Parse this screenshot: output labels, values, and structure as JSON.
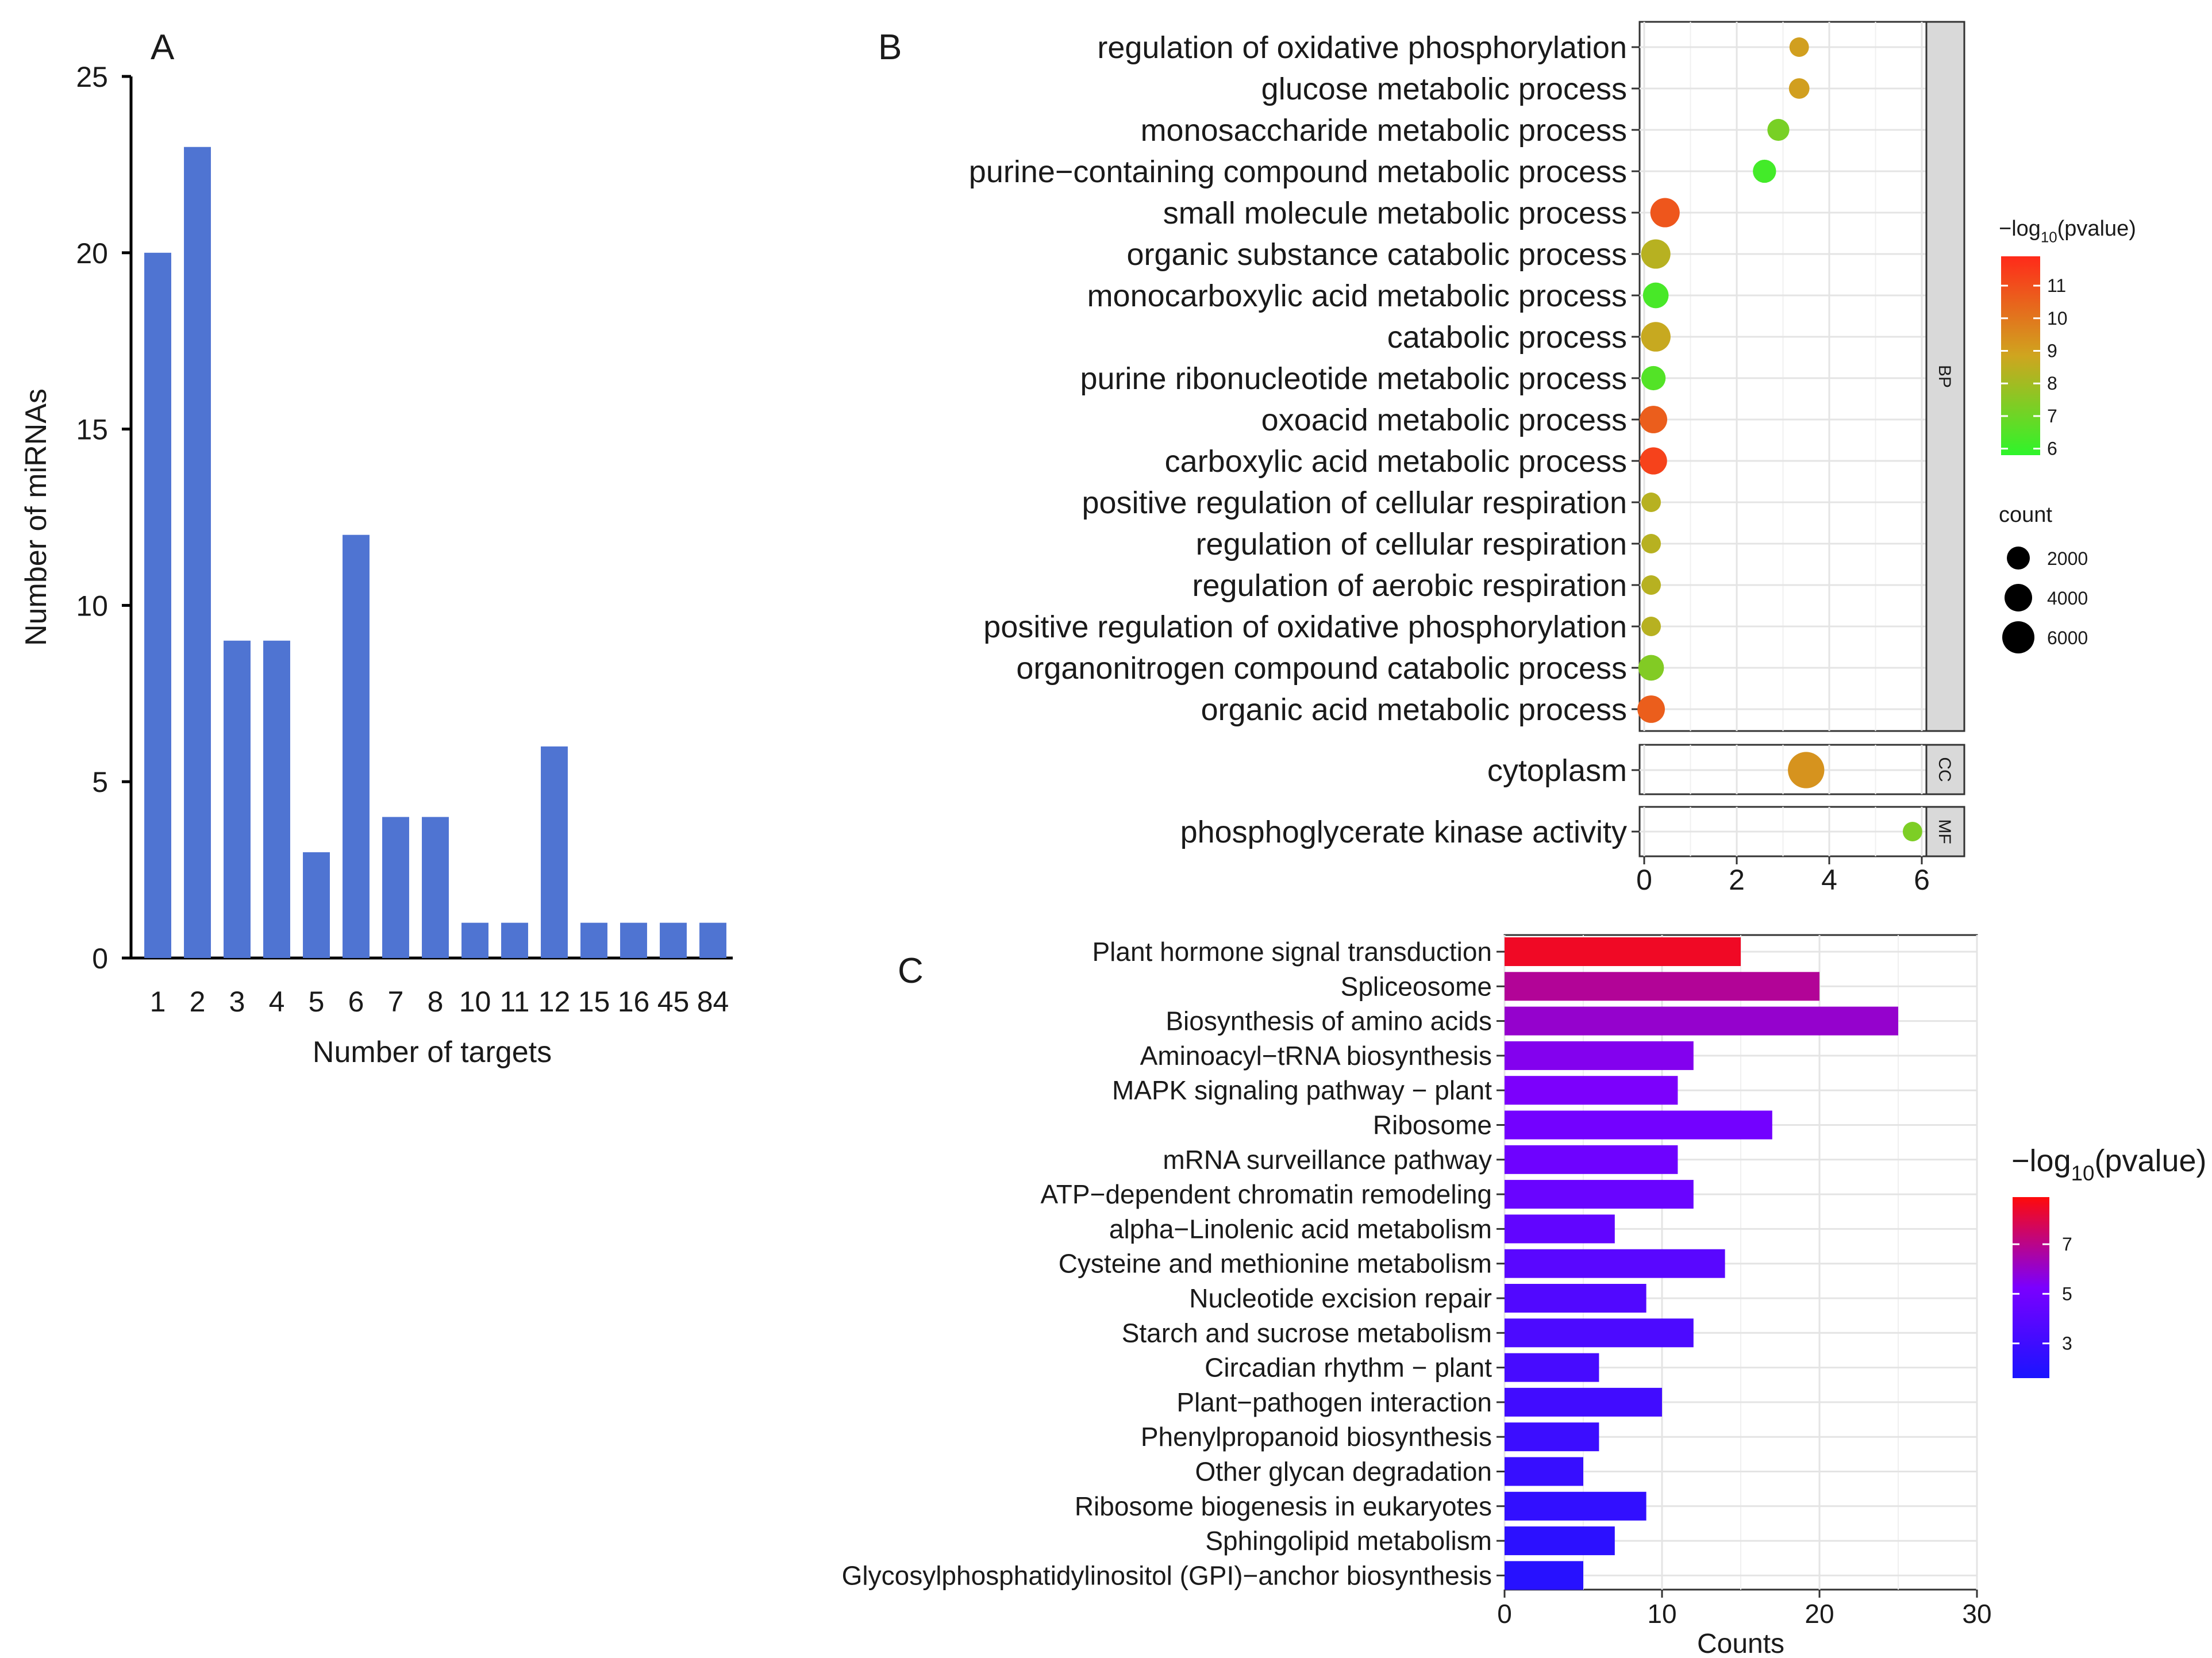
{
  "chart_data": [
    {
      "panel": "A",
      "type": "bar",
      "panel_label": "A",
      "xlabel": "Number of  targets",
      "ylabel": "Number of miRNAs",
      "categories": [
        "1",
        "2",
        "3",
        "4",
        "5",
        "6",
        "7",
        "8",
        "10",
        "11",
        "12",
        "15",
        "16",
        "45",
        "84"
      ],
      "values": [
        20,
        23,
        9,
        9,
        3,
        12,
        4,
        4,
        1,
        1,
        6,
        1,
        1,
        1,
        1
      ],
      "ylim": [
        0,
        25
      ],
      "yticks": [
        "0",
        "5",
        "10",
        "15",
        "20",
        "25"
      ],
      "bar_color": "#4f74d2",
      "grid": false
    },
    {
      "panel": "B",
      "type": "scatter",
      "panel_label": "B",
      "xlim": [
        0,
        6
      ],
      "xticks": [
        "0",
        "2",
        "4",
        "6"
      ],
      "facets": [
        {
          "strip": "BP",
          "terms": [
            {
              "label": "regulation of oxidative phosphorylation",
              "x": 3.35,
              "color_value": 9.0,
              "count": 700
            },
            {
              "label": "glucose metabolic process",
              "x": 3.35,
              "color_value": 9.0,
              "count": 900
            },
            {
              "label": "monosaccharide metabolic process",
              "x": 2.9,
              "color_value": 7.2,
              "count": 1200
            },
            {
              "label": "purine−containing compound metabolic process",
              "x": 2.6,
              "color_value": 6.2,
              "count": 1500
            },
            {
              "label": "small molecule metabolic process",
              "x": 0.45,
              "color_value": 10.8,
              "count": 3500
            },
            {
              "label": "organic substance catabolic process",
              "x": 0.25,
              "color_value": 8.4,
              "count": 3500
            },
            {
              "label": "monocarboxylic acid metabolic process",
              "x": 0.25,
              "color_value": 6.3,
              "count": 2200
            },
            {
              "label": "catabolic process",
              "x": 0.25,
              "color_value": 8.7,
              "count": 3600
            },
            {
              "label": "purine ribonucleotide metabolic process",
              "x": 0.2,
              "color_value": 6.5,
              "count": 1800
            },
            {
              "label": "oxoacid metabolic process",
              "x": 0.2,
              "color_value": 10.6,
              "count": 2800
            },
            {
              "label": "carboxylic acid metabolic process",
              "x": 0.2,
              "color_value": 11.3,
              "count": 2700
            },
            {
              "label": "positive regulation of cellular respiration",
              "x": 0.15,
              "color_value": 8.4,
              "count": 700
            },
            {
              "label": "regulation of cellular respiration",
              "x": 0.15,
              "color_value": 8.4,
              "count": 700
            },
            {
              "label": "regulation of aerobic respiration",
              "x": 0.15,
              "color_value": 8.4,
              "count": 700
            },
            {
              "label": "positive regulation of oxidative phosphorylation",
              "x": 0.15,
              "color_value": 8.4,
              "count": 700
            },
            {
              "label": "organonitrogen compound catabolic process",
              "x": 0.15,
              "color_value": 7.4,
              "count": 2200
            },
            {
              "label": "organic acid metabolic process",
              "x": 0.15,
              "color_value": 10.6,
              "count": 2800
            }
          ]
        },
        {
          "strip": "CC",
          "terms": [
            {
              "label": "cytoplasm",
              "x": 3.5,
              "color_value": 9.3,
              "count": 6800
            }
          ]
        },
        {
          "strip": "MF",
          "terms": [
            {
              "label": "phosphoglycerate kinase activity",
              "x": 5.8,
              "color_value": 7.3,
              "count": 700
            }
          ]
        }
      ],
      "legend_color": {
        "title_prefix": "−log",
        "title_sub": "10",
        "title_suffix": "(pvalue)",
        "range": [
          5.8,
          11.9
        ],
        "ticks": [
          "11",
          "10",
          "9",
          "8",
          "7",
          "6"
        ],
        "colors": [
          "#ff2a1a",
          "#cfa51f",
          "#2ef52a"
        ]
      },
      "legend_size": {
        "title": "count",
        "entries": [
          "2000",
          "4000",
          "6000"
        ]
      }
    },
    {
      "panel": "C",
      "type": "bar",
      "orientation": "horizontal",
      "panel_label": "C",
      "xlabel": "Counts",
      "xlim": [
        0,
        30
      ],
      "xticks": [
        "0",
        "10",
        "20",
        "30"
      ],
      "categories": [
        "Plant hormone signal transduction",
        "Spliceosome",
        "Biosynthesis of amino acids",
        "Aminoacyl−tRNA biosynthesis",
        "MAPK signaling pathway − plant",
        "Ribosome",
        "mRNA surveillance pathway",
        "ATP−dependent chromatin remodeling",
        "alpha−Linolenic acid metabolism",
        "Cysteine and methionine metabolism",
        "Nucleotide excision repair",
        "Starch and sucrose metabolism",
        "Circadian rhythm − plant",
        "Plant−pathogen interaction",
        "Phenylpropanoid biosynthesis",
        "Other glycan degradation",
        "Ribosome biogenesis in eukaryotes",
        "Sphingolipid metabolism",
        "Glycosylphosphatidylinositol (GPI)−anchor biosynthesis"
      ],
      "values": [
        15,
        20,
        25,
        12,
        11,
        17,
        11,
        12,
        7,
        14,
        9,
        12,
        6,
        10,
        6,
        5,
        9,
        7,
        5
      ],
      "color_values": [
        8.5,
        6.8,
        6.0,
        5.5,
        5.3,
        5.0,
        4.8,
        4.6,
        4.3,
        4.0,
        3.7,
        3.5,
        3.3,
        3.1,
        2.9,
        2.7,
        2.5,
        2.3,
        2.1
      ],
      "legend_color": {
        "title_prefix": "−log",
        "title_sub": "10",
        "title_suffix": "(pvalue)",
        "range": [
          1.6,
          8.9
        ],
        "ticks": [
          "7",
          "5",
          "3"
        ],
        "colors": [
          "#ff0a0a",
          "#7a00ff",
          "#1a14ff"
        ]
      },
      "grid": true
    }
  ]
}
